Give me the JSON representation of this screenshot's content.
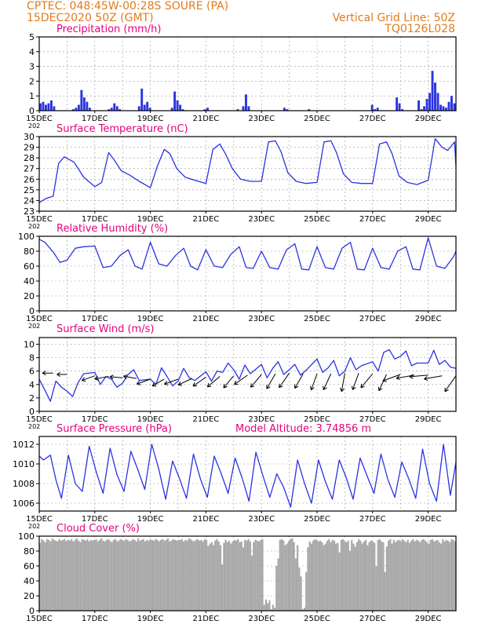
{
  "header": {
    "line1": "CPTEC:  048:45W-00:28S  SOURE (PA)",
    "line2": "15DEC2020 50Z (GMT)",
    "right1": "Vertical Grid Line: 50Z",
    "right2": "TQ0126L028",
    "color": "#e07b1e"
  },
  "colors": {
    "title": "#e6007e",
    "line": "#2a34e0",
    "cloud": "#a9a9a9",
    "frame": "#000000",
    "grid": "#9a9a9a"
  },
  "model_altitude": "Model Altitude: 3.74856 m",
  "year_fragment": "202",
  "x_axis": {
    "days": [
      "15DEC",
      "17DEC",
      "19DEC",
      "21DEC",
      "23DEC",
      "25DEC",
      "27DEC",
      "29DEC"
    ],
    "day_offsets": [
      0,
      2,
      4,
      6,
      8,
      10,
      12,
      14
    ],
    "span_days": 15
  },
  "chart_data": [
    {
      "type": "bar",
      "title": "Precipitation (mm/h)",
      "ylim": [
        0,
        5
      ],
      "yticks": [
        0,
        1,
        2,
        3,
        4,
        5
      ],
      "samples_per_day": 8,
      "values": [
        0.5,
        0.6,
        0.4,
        0.5,
        0.7,
        0.3,
        0,
        0,
        0,
        0,
        0,
        0,
        0.1,
        0.2,
        0.4,
        1.4,
        0.9,
        0.6,
        0.2,
        0,
        0,
        0,
        0,
        0,
        0,
        0.1,
        0.2,
        0.5,
        0.3,
        0.1,
        0,
        0,
        0,
        0,
        0,
        0,
        0.3,
        1.5,
        0.4,
        0.6,
        0.2,
        0,
        0,
        0,
        0,
        0,
        0,
        0,
        0.2,
        1.3,
        0.7,
        0.4,
        0.1,
        0,
        0,
        0,
        0,
        0,
        0,
        0,
        0.1,
        0.2,
        0,
        0,
        0,
        0,
        0,
        0,
        0,
        0,
        0,
        0,
        0.1,
        0,
        0.3,
        1.1,
        0.3,
        0,
        0,
        0,
        0,
        0,
        0,
        0,
        0,
        0,
        0,
        0,
        0,
        0.2,
        0.1,
        0,
        0,
        0,
        0,
        0,
        0,
        0,
        0.1,
        0,
        0,
        0,
        0,
        0,
        0,
        0,
        0,
        0,
        0,
        0,
        0,
        0,
        0,
        0,
        0,
        0,
        0,
        0,
        0,
        0,
        0,
        0.4,
        0.1,
        0.2,
        0,
        0,
        0,
        0,
        0,
        0,
        0.9,
        0.5,
        0.1,
        0,
        0,
        0,
        0,
        0,
        0.7,
        0.1,
        0.3,
        0.8,
        1.2,
        2.7,
        1.9,
        1.2,
        0.4,
        0.3,
        0.2,
        0.6,
        1.0,
        0.5
      ]
    },
    {
      "type": "line",
      "title": "Surface Temperature (nC)",
      "ylim": [
        23,
        30
      ],
      "yticks": [
        23,
        24,
        25,
        26,
        27,
        28,
        29,
        30
      ],
      "x": [
        0,
        0.25,
        0.5,
        0.7,
        0.9,
        1.25,
        1.6,
        2.0,
        2.25,
        2.5,
        2.7,
        2.95,
        3.25,
        3.6,
        4.0,
        4.25,
        4.5,
        4.7,
        4.95,
        5.25,
        5.6,
        6.0,
        6.25,
        6.5,
        6.7,
        6.95,
        7.25,
        7.6,
        8.0,
        8.25,
        8.5,
        8.7,
        8.95,
        9.25,
        9.6,
        10.0,
        10.25,
        10.5,
        10.7,
        10.95,
        11.25,
        11.6,
        12.0,
        12.25,
        12.5,
        12.7,
        12.95,
        13.25,
        13.6,
        14.0,
        14.25,
        14.5,
        14.7,
        14.95,
        15.0
      ],
      "values": [
        23.8,
        24.2,
        24.4,
        27.5,
        28.1,
        27.6,
        26.2,
        25.3,
        25.7,
        28.5,
        27.8,
        26.8,
        26.4,
        25.8,
        25.2,
        27.2,
        28.8,
        28.4,
        27.0,
        26.2,
        25.9,
        25.6,
        28.8,
        29.3,
        28.4,
        27.0,
        26.0,
        25.8,
        25.8,
        29.5,
        29.6,
        28.6,
        26.6,
        25.8,
        25.6,
        25.7,
        29.5,
        29.6,
        28.5,
        26.5,
        25.7,
        25.6,
        25.6,
        29.3,
        29.5,
        28.4,
        26.3,
        25.7,
        25.5,
        25.9,
        29.8,
        29.0,
        28.7,
        29.5,
        27.2
      ]
    },
    {
      "type": "line",
      "title": "Relative Humidity (%)",
      "ylim": [
        0,
        100
      ],
      "yticks": [
        0,
        20,
        40,
        60,
        80,
        100
      ],
      "x": [
        0,
        0.2,
        0.5,
        0.75,
        1.0,
        1.3,
        1.6,
        2.0,
        2.3,
        2.6,
        2.9,
        3.2,
        3.45,
        3.7,
        4.0,
        4.3,
        4.6,
        4.9,
        5.2,
        5.45,
        5.7,
        6.0,
        6.3,
        6.6,
        6.9,
        7.2,
        7.45,
        7.7,
        8.0,
        8.3,
        8.6,
        8.9,
        9.2,
        9.45,
        9.7,
        10.0,
        10.3,
        10.6,
        10.9,
        11.2,
        11.45,
        11.7,
        12.0,
        12.3,
        12.6,
        12.9,
        13.2,
        13.45,
        13.7,
        14.0,
        14.3,
        14.6,
        14.9,
        15.0
      ],
      "values": [
        96,
        92,
        79,
        65,
        68,
        84,
        86,
        87,
        58,
        60,
        74,
        82,
        60,
        56,
        92,
        63,
        60,
        74,
        84,
        60,
        55,
        82,
        60,
        58,
        76,
        86,
        58,
        57,
        80,
        58,
        56,
        82,
        90,
        56,
        55,
        86,
        58,
        56,
        84,
        92,
        56,
        55,
        84,
        58,
        56,
        80,
        86,
        56,
        55,
        98,
        60,
        57,
        72,
        80
      ]
    },
    {
      "type": "line",
      "title": "Surface Wind (m/s)",
      "ylim": [
        0,
        11
      ],
      "yticks": [
        0,
        2,
        4,
        6,
        8,
        10
      ],
      "x": [
        0,
        0.2,
        0.4,
        0.6,
        0.8,
        1.0,
        1.2,
        1.4,
        1.6,
        2.0,
        2.2,
        2.4,
        2.6,
        2.8,
        3.0,
        3.2,
        3.4,
        3.6,
        4.0,
        4.2,
        4.4,
        4.6,
        4.8,
        5.0,
        5.2,
        5.4,
        5.6,
        6.0,
        6.2,
        6.4,
        6.6,
        6.8,
        7.0,
        7.2,
        7.4,
        7.6,
        8.0,
        8.2,
        8.4,
        8.6,
        8.8,
        9.0,
        9.2,
        9.4,
        9.6,
        10.0,
        10.2,
        10.4,
        10.6,
        10.8,
        11.0,
        11.2,
        11.4,
        11.6,
        12.0,
        12.2,
        12.4,
        12.6,
        12.8,
        13.0,
        13.2,
        13.4,
        13.6,
        14.0,
        14.2,
        14.4,
        14.6,
        14.8,
        15.0
      ],
      "values": [
        4.8,
        3.2,
        1.5,
        4.5,
        3.6,
        3.0,
        2.2,
        4.3,
        5.6,
        5.8,
        4.0,
        5.2,
        4.8,
        3.6,
        4.2,
        5.5,
        6.2,
        4.6,
        4.8,
        4.0,
        6.5,
        5.2,
        3.8,
        4.5,
        6.4,
        5.0,
        4.6,
        5.9,
        4.5,
        6.0,
        5.8,
        7.2,
        6.2,
        4.8,
        6.9,
        5.6,
        7.0,
        5.0,
        6.4,
        7.4,
        5.5,
        6.2,
        7.0,
        5.4,
        6.1,
        7.8,
        5.8,
        6.5,
        7.6,
        5.3,
        6.0,
        8.0,
        6.2,
        6.8,
        7.4,
        6.0,
        8.8,
        9.2,
        7.8,
        8.2,
        9.0,
        6.8,
        7.2,
        7.2,
        9.1,
        7.0,
        7.6,
        6.6,
        6.4
      ],
      "arrows": {
        "x": [
          0.5,
          1.0,
          2.0,
          2.5,
          3.0,
          3.5,
          4.0,
          4.5,
          5.0,
          5.5,
          6.0,
          6.5,
          7.0,
          7.5,
          8.0,
          8.5,
          9.0,
          9.5,
          10.0,
          10.5,
          11.0,
          11.5,
          12.0,
          12.5,
          13.0,
          13.5,
          14.0,
          14.5,
          15.0
        ],
        "speed": [
          3.0,
          2.8,
          4.2,
          4.4,
          3.8,
          4.0,
          4.5,
          4.2,
          4.6,
          4.8,
          5.0,
          5.2,
          5.0,
          5.2,
          5.4,
          5.6,
          5.8,
          5.4,
          5.6,
          5.8,
          6.2,
          5.8,
          6.0,
          5.9,
          6.2,
          6.0,
          6.2,
          6.0,
          6.4
        ],
        "dir_deg": [
          180,
          180,
          200,
          190,
          175,
          170,
          200,
          210,
          200,
          205,
          215,
          220,
          230,
          215,
          230,
          240,
          235,
          240,
          250,
          245,
          260,
          250,
          230,
          245,
          200,
          190,
          185,
          190,
          235
        ],
        "y": [
          5.7,
          5.5,
          5.3,
          5.2,
          5.0,
          4.9,
          4.8,
          4.8,
          4.8,
          4.9,
          5.1,
          5.2,
          5.3,
          5.4,
          5.5,
          5.6,
          5.7,
          5.6,
          5.6,
          5.6,
          5.7,
          5.7,
          5.6,
          5.5,
          5.5,
          5.4,
          5.4,
          5.3,
          5.3
        ]
      }
    },
    {
      "type": "line",
      "title": "Surface Pressure (hPa)",
      "ylim": [
        1005.2,
        1012.8
      ],
      "yticks": [
        1006,
        1008,
        1010,
        1012
      ],
      "x": [
        0,
        0.15,
        0.4,
        0.6,
        0.8,
        1.05,
        1.3,
        1.55,
        1.8,
        2.05,
        2.3,
        2.55,
        2.8,
        3.05,
        3.3,
        3.55,
        3.8,
        4.05,
        4.3,
        4.55,
        4.8,
        5.05,
        5.3,
        5.55,
        5.8,
        6.05,
        6.3,
        6.55,
        6.8,
        7.05,
        7.3,
        7.55,
        7.8,
        8.05,
        8.3,
        8.55,
        8.8,
        9.05,
        9.3,
        9.55,
        9.8,
        10.05,
        10.3,
        10.55,
        10.8,
        11.05,
        11.3,
        11.55,
        11.8,
        12.05,
        12.3,
        12.55,
        12.8,
        13.05,
        13.3,
        13.55,
        13.8,
        14.05,
        14.3,
        14.55,
        14.8,
        15.0
      ],
      "values": [
        1010.8,
        1010.4,
        1010.9,
        1008.4,
        1006.5,
        1010.9,
        1008.0,
        1007.2,
        1011.8,
        1009.2,
        1007.0,
        1011.6,
        1008.9,
        1007.2,
        1011.3,
        1009.4,
        1007.4,
        1012.0,
        1009.5,
        1006.4,
        1010.3,
        1008.5,
        1006.5,
        1011.0,
        1008.5,
        1006.6,
        1010.8,
        1009.0,
        1007.0,
        1010.6,
        1008.6,
        1006.2,
        1011.2,
        1008.8,
        1006.6,
        1009.0,
        1007.6,
        1005.6,
        1010.4,
        1008.0,
        1006.0,
        1010.4,
        1008.2,
        1006.4,
        1010.4,
        1008.6,
        1006.4,
        1010.6,
        1008.8,
        1007.0,
        1011.0,
        1008.4,
        1006.6,
        1010.2,
        1008.5,
        1006.5,
        1011.5,
        1008.0,
        1006.2,
        1012.0,
        1006.8,
        1010.2
      ]
    },
    {
      "type": "bar",
      "title": "Cloud Cover (%)",
      "ylim": [
        0,
        100
      ],
      "yticks": [
        0,
        20,
        40,
        60,
        80,
        100
      ],
      "samples_per_day": 16,
      "values": [
        91,
        96,
        94,
        92,
        96,
        95,
        93,
        97,
        95,
        94,
        93,
        96,
        94,
        95,
        96,
        93,
        95,
        94,
        96,
        93,
        95,
        97,
        94,
        92,
        96,
        95,
        94,
        96,
        93,
        95,
        94,
        95,
        96,
        93,
        95,
        97,
        94,
        93,
        95,
        96,
        94,
        92,
        95,
        96,
        93,
        94,
        96,
        95,
        94,
        96,
        95,
        93,
        94,
        96,
        95,
        93,
        97,
        94,
        95,
        96,
        93,
        95,
        94,
        96,
        95,
        94,
        96,
        95,
        93,
        95,
        96,
        94,
        95,
        97,
        93,
        94,
        96,
        95,
        94,
        95,
        95,
        96,
        93,
        95,
        94,
        97,
        96,
        94,
        93,
        95,
        96,
        94,
        95,
        93,
        96,
        95,
        87,
        90,
        92,
        88,
        94,
        96,
        93,
        88,
        62,
        91,
        95,
        92,
        94,
        90,
        93,
        95,
        94,
        96,
        92,
        93,
        85,
        95,
        94,
        96,
        93,
        74,
        92,
        95,
        94,
        93,
        95,
        96,
        8,
        15,
        10,
        14,
        2,
        8,
        4,
        60,
        70,
        95,
        96,
        94,
        88,
        90,
        93,
        96,
        97,
        92,
        70,
        88,
        58,
        46,
        2,
        4,
        52,
        85,
        93,
        90,
        94,
        96,
        95,
        93,
        94,
        92,
        88,
        90,
        94,
        96,
        92,
        95,
        94,
        90,
        91,
        78,
        95,
        96,
        93,
        92,
        94,
        80,
        95,
        90,
        86,
        92,
        96,
        94,
        90,
        93,
        95,
        88,
        92,
        94,
        93,
        91,
        60,
        95,
        96,
        93,
        92,
        52,
        86,
        94,
        96,
        90,
        95,
        92,
        94,
        95,
        93,
        96,
        94,
        92,
        95,
        91,
        94,
        96,
        93,
        95,
        94,
        92,
        95,
        96,
        94,
        92,
        90,
        95,
        96,
        93,
        94,
        95,
        92,
        90,
        96,
        93,
        95,
        94,
        92,
        96,
        95,
        93
      ]
    }
  ]
}
